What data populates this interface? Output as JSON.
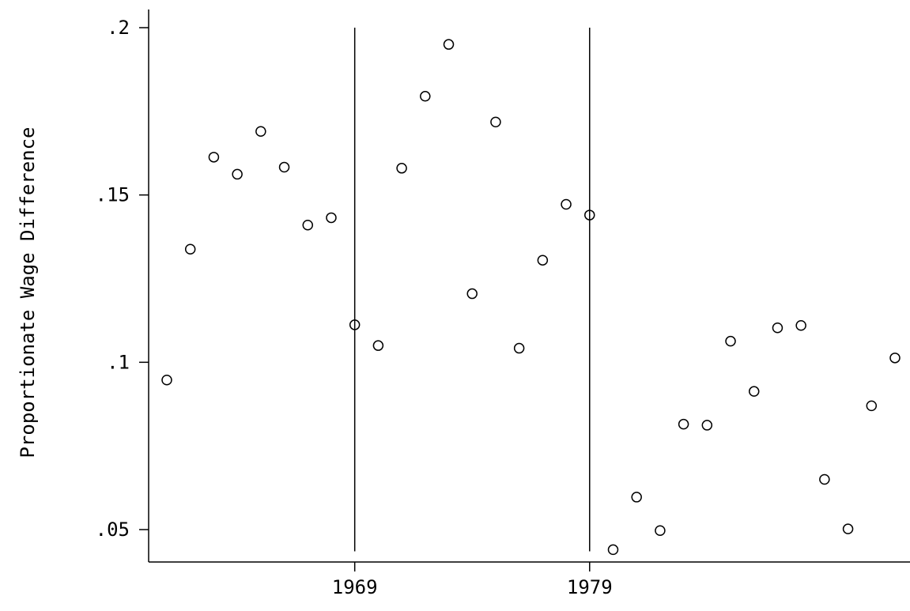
{
  "chart_data": {
    "type": "scatter",
    "ylabel": "Proportionate Wage Difference",
    "xlabel": "",
    "xlim": [
      1960.2,
      1994
    ],
    "ylim": [
      0.0405,
      0.2
    ],
    "y_ticks": [
      0.05,
      0.1,
      0.15,
      0.2
    ],
    "y_tick_labels": [
      ".05",
      ".1",
      ".15",
      ".2"
    ],
    "x_ticks": [
      1969,
      1979
    ],
    "x_tick_labels": [
      "1969",
      "1979"
    ],
    "reference_lines_x": [
      1969,
      1979
    ],
    "grid": false,
    "marker": "hollow-circle",
    "points": [
      {
        "x": 1961,
        "y": 0.0947
      },
      {
        "x": 1962,
        "y": 0.1338
      },
      {
        "x": 1963,
        "y": 0.1613
      },
      {
        "x": 1964,
        "y": 0.1562
      },
      {
        "x": 1965,
        "y": 0.169
      },
      {
        "x": 1966,
        "y": 0.1583
      },
      {
        "x": 1967,
        "y": 0.141
      },
      {
        "x": 1968,
        "y": 0.1432
      },
      {
        "x": 1969,
        "y": 0.1112
      },
      {
        "x": 1970,
        "y": 0.105
      },
      {
        "x": 1971,
        "y": 0.158
      },
      {
        "x": 1972,
        "y": 0.1795
      },
      {
        "x": 1973,
        "y": 0.195
      },
      {
        "x": 1974,
        "y": 0.1205
      },
      {
        "x": 1975,
        "y": 0.1718
      },
      {
        "x": 1976,
        "y": 0.1042
      },
      {
        "x": 1977,
        "y": 0.1305
      },
      {
        "x": 1978,
        "y": 0.1472
      },
      {
        "x": 1979,
        "y": 0.144
      },
      {
        "x": 1980,
        "y": 0.044
      },
      {
        "x": 1981,
        "y": 0.0597
      },
      {
        "x": 1982,
        "y": 0.0497
      },
      {
        "x": 1983,
        "y": 0.0815
      },
      {
        "x": 1984,
        "y": 0.0812
      },
      {
        "x": 1985,
        "y": 0.1063
      },
      {
        "x": 1986,
        "y": 0.0913
      },
      {
        "x": 1987,
        "y": 0.1103
      },
      {
        "x": 1988,
        "y": 0.111
      },
      {
        "x": 1989,
        "y": 0.065
      },
      {
        "x": 1990,
        "y": 0.0502
      },
      {
        "x": 1991,
        "y": 0.087
      },
      {
        "x": 1992,
        "y": 0.1013
      }
    ]
  }
}
